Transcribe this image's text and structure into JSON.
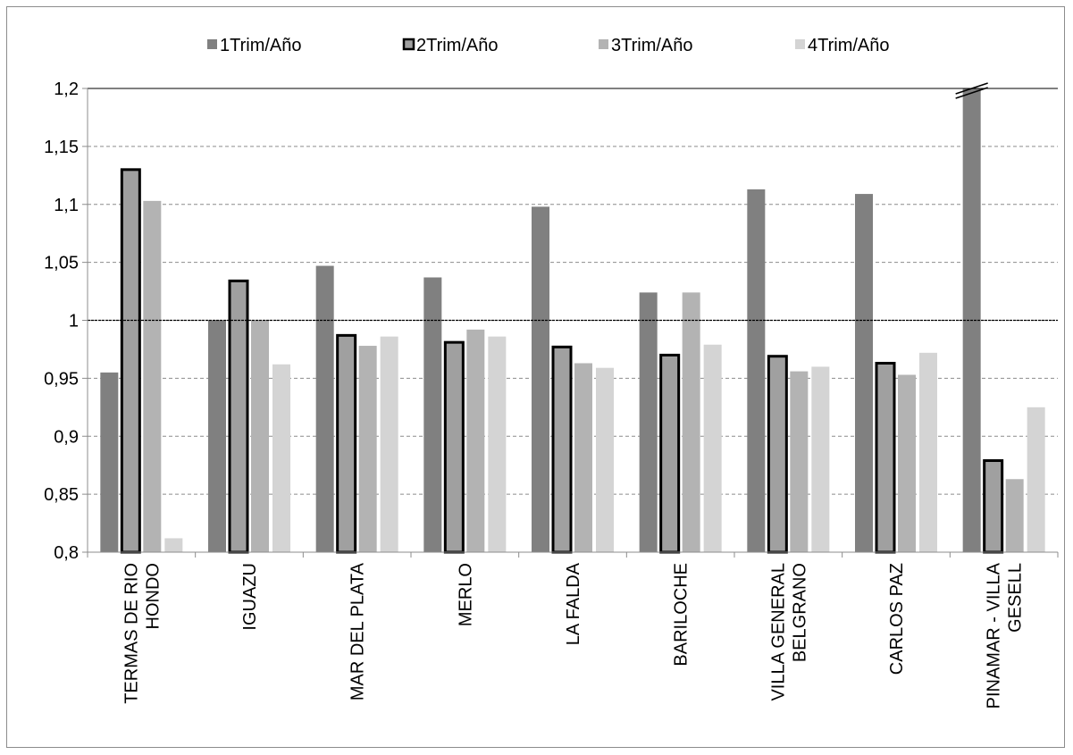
{
  "chart_data": {
    "type": "bar",
    "categories": [
      [
        "TERMAS DE RIO",
        "HONDO"
      ],
      [
        "IGUAZU"
      ],
      [
        "MAR DEL PLATA"
      ],
      [
        "MERLO"
      ],
      [
        "LA FALDA"
      ],
      [
        "BARILOCHE"
      ],
      [
        "VILLA GENERAL",
        "BELGRANO"
      ],
      [
        "CARLOS PAZ"
      ],
      [
        "PINAMAR - VILLA",
        "GESELL"
      ]
    ],
    "series": [
      {
        "name": "1Trim/Año",
        "color": "#808080",
        "outlined": false,
        "values": [
          0.955,
          1.0,
          1.047,
          1.037,
          1.098,
          1.024,
          1.113,
          1.109,
          1.2
        ]
      },
      {
        "name": "2Trim/Año",
        "color": "#a0a0a0",
        "outlined": true,
        "values": [
          1.13,
          1.034,
          0.987,
          0.981,
          0.977,
          0.97,
          0.969,
          0.963,
          0.879
        ]
      },
      {
        "name": "3Trim/Año",
        "color": "#b3b3b3",
        "outlined": false,
        "values": [
          1.103,
          1.0,
          0.978,
          0.992,
          0.963,
          1.024,
          0.956,
          0.953,
          0.863
        ]
      },
      {
        "name": "4Trim/Año",
        "color": "#d4d4d4",
        "outlined": false,
        "values": [
          0.812,
          0.962,
          0.986,
          0.986,
          0.959,
          0.979,
          0.96,
          0.972,
          0.925
        ]
      }
    ],
    "yticks": [
      "0,8",
      "0,85",
      "0,9",
      "0,95",
      "1",
      "1,05",
      "1,1",
      "1,15",
      "1,2"
    ],
    "ylim": [
      0.8,
      1.2
    ],
    "reference_line": 1.0,
    "axis_break_category": 8,
    "grid": true,
    "legend_position": "top"
  }
}
